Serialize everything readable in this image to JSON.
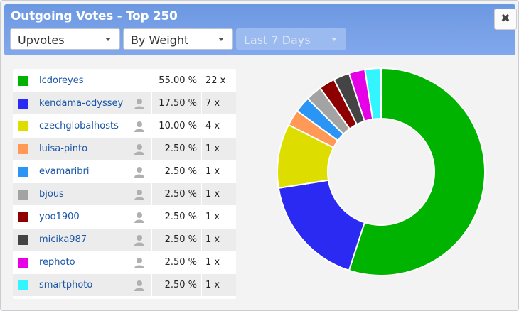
{
  "window": {
    "title": "Outgoing Votes - Top 250",
    "close_glyph": "✖"
  },
  "filters": {
    "vote_type": "Upvotes",
    "sort": "By Weight",
    "period": "Last 7 Days"
  },
  "colors": {
    "header": "#7aa2ea",
    "link": "#1a56a8"
  },
  "rows": [
    {
      "name": "lcdoreyes",
      "percent": "55.00 %",
      "count": "22 x",
      "color": "#00b300",
      "avatar": false
    },
    {
      "name": "kendama-odyssey",
      "percent": "17.50 %",
      "count": "7 x",
      "color": "#2a2af2",
      "avatar": true
    },
    {
      "name": "czechglobalhosts",
      "percent": "10.00 %",
      "count": "4 x",
      "color": "#dddd00",
      "avatar": true
    },
    {
      "name": "luisa-pinto",
      "percent": "2.50 %",
      "count": "1 x",
      "color": "#ff9955",
      "avatar": true
    },
    {
      "name": "evamaribri",
      "percent": "2.50 %",
      "count": "1 x",
      "color": "#2b95f5",
      "avatar": true
    },
    {
      "name": "bjous",
      "percent": "2.50 %",
      "count": "1 x",
      "color": "#a3a3a3",
      "avatar": true
    },
    {
      "name": "yoo1900",
      "percent": "2.50 %",
      "count": "1 x",
      "color": "#8e0000",
      "avatar": true
    },
    {
      "name": "micika987",
      "percent": "2.50 %",
      "count": "1 x",
      "color": "#444444",
      "avatar": true
    },
    {
      "name": "rephoto",
      "percent": "2.50 %",
      "count": "1 x",
      "color": "#e600e6",
      "avatar": true
    },
    {
      "name": "smartphoto",
      "percent": "2.50 %",
      "count": "1 x",
      "color": "#33f5ff",
      "avatar": true
    }
  ],
  "chart_data": {
    "type": "pie",
    "donut": true,
    "labels": [
      "lcdoreyes",
      "kendama-odyssey",
      "czechglobalhosts",
      "luisa-pinto",
      "evamaribri",
      "bjous",
      "yoo1900",
      "micika987",
      "rephoto",
      "smartphoto"
    ],
    "values": [
      55.0,
      17.5,
      10.0,
      2.5,
      2.5,
      2.5,
      2.5,
      2.5,
      2.5,
      2.5
    ],
    "colors": [
      "#00b300",
      "#2a2af2",
      "#dddd00",
      "#ff9955",
      "#2b95f5",
      "#a3a3a3",
      "#8e0000",
      "#444444",
      "#e600e6",
      "#33f5ff"
    ],
    "start": "top",
    "direction": "clockwise"
  }
}
